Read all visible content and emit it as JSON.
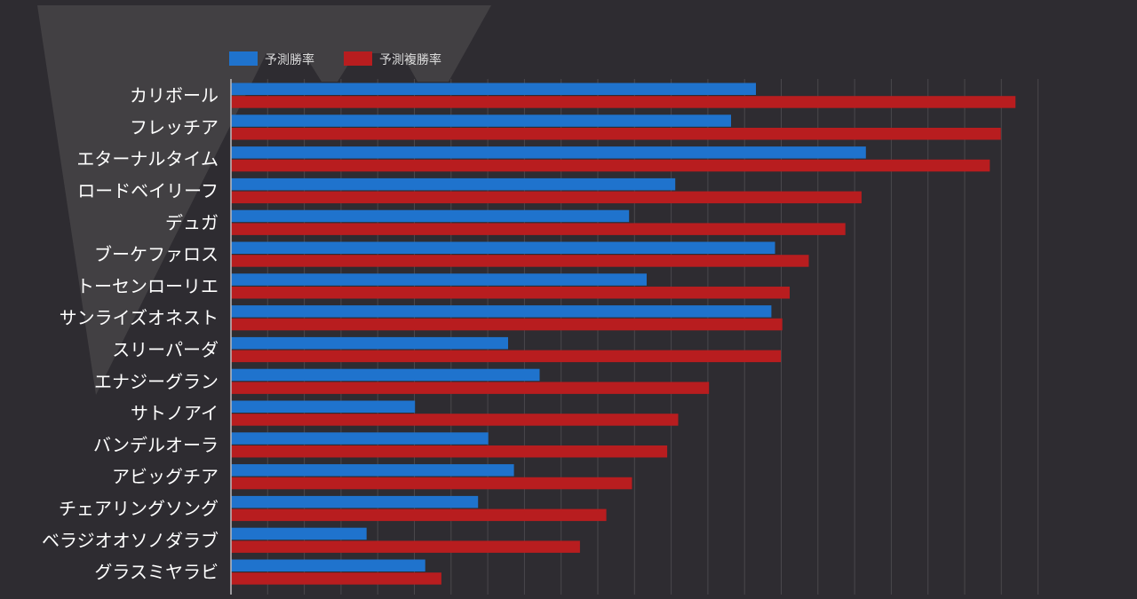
{
  "colors": {
    "background": "#2e2c31",
    "watermark": "#5a585c",
    "grid": "#4a484c",
    "axis": "#bdbcbf",
    "label_text": "#ffffff",
    "legend_text": "#dcdcdc"
  },
  "chart_data": {
    "type": "bar",
    "orientation": "horizontal",
    "title": "",
    "xlabel": "",
    "ylabel": "",
    "xlim": [
      0,
      1.1
    ],
    "grid": true,
    "legend_position": "top-left",
    "categories": [
      "カリボール",
      "フレッチア",
      "エターナルタイム",
      "ロードベイリーフ",
      "デュガ",
      "ブーケファロス",
      "トーセンローリエ",
      "サンライズオネスト",
      "スリーパーダ",
      "エナジーグラン",
      "サトノアイ",
      "バンデルオーラ",
      "アビッグチア",
      "チェアリングソング",
      "ベラジオオソノダラブ",
      "グラスミヤラビ"
    ],
    "series": [
      {
        "name": "予測勝率",
        "color": "#1f73cd",
        "values": [
          0.716,
          0.682,
          0.866,
          0.606,
          0.543,
          0.742,
          0.567,
          0.737,
          0.378,
          0.421,
          0.251,
          0.351,
          0.386,
          0.337,
          0.185,
          0.265
        ]
      },
      {
        "name": "予測複勝率",
        "color": "#b81d1f",
        "values": [
          1.07,
          1.05,
          1.035,
          0.86,
          0.838,
          0.788,
          0.762,
          0.752,
          0.75,
          0.652,
          0.61,
          0.595,
          0.547,
          0.512,
          0.476,
          0.287
        ]
      }
    ]
  }
}
